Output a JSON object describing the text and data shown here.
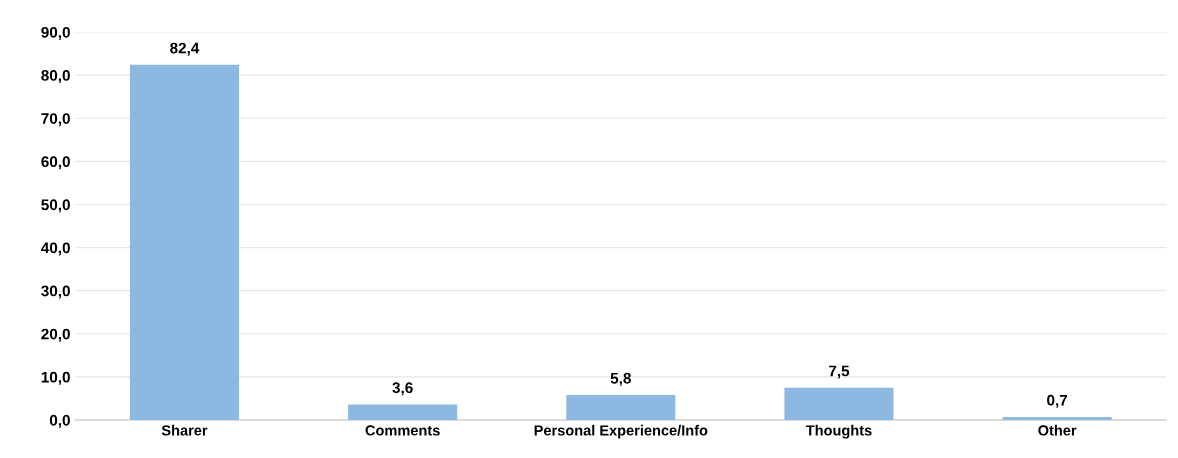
{
  "chart_data": {
    "type": "bar",
    "categories": [
      "Sharer",
      "Comments",
      "Personal Experience/Info",
      "Thoughts",
      "Other"
    ],
    "values": [
      82.4,
      3.6,
      5.8,
      7.5,
      0.7
    ],
    "value_labels": [
      "82,4",
      "3,6",
      "5,8",
      "7,5",
      "0,7"
    ],
    "color": "#8db8e2",
    "ylim": [
      0,
      90
    ],
    "yticks": [
      {
        "value": 0,
        "label": "0,0"
      },
      {
        "value": 10,
        "label": "10,0"
      },
      {
        "value": 20,
        "label": "20,0"
      },
      {
        "value": 30,
        "label": "30,0"
      },
      {
        "value": 40,
        "label": "40,0"
      },
      {
        "value": 50,
        "label": "50,0"
      },
      {
        "value": 60,
        "label": "60,0"
      },
      {
        "value": 70,
        "label": "70,0"
      },
      {
        "value": 80,
        "label": "80,0"
      },
      {
        "value": 90,
        "label": "90,0"
      }
    ],
    "grid": "y"
  }
}
